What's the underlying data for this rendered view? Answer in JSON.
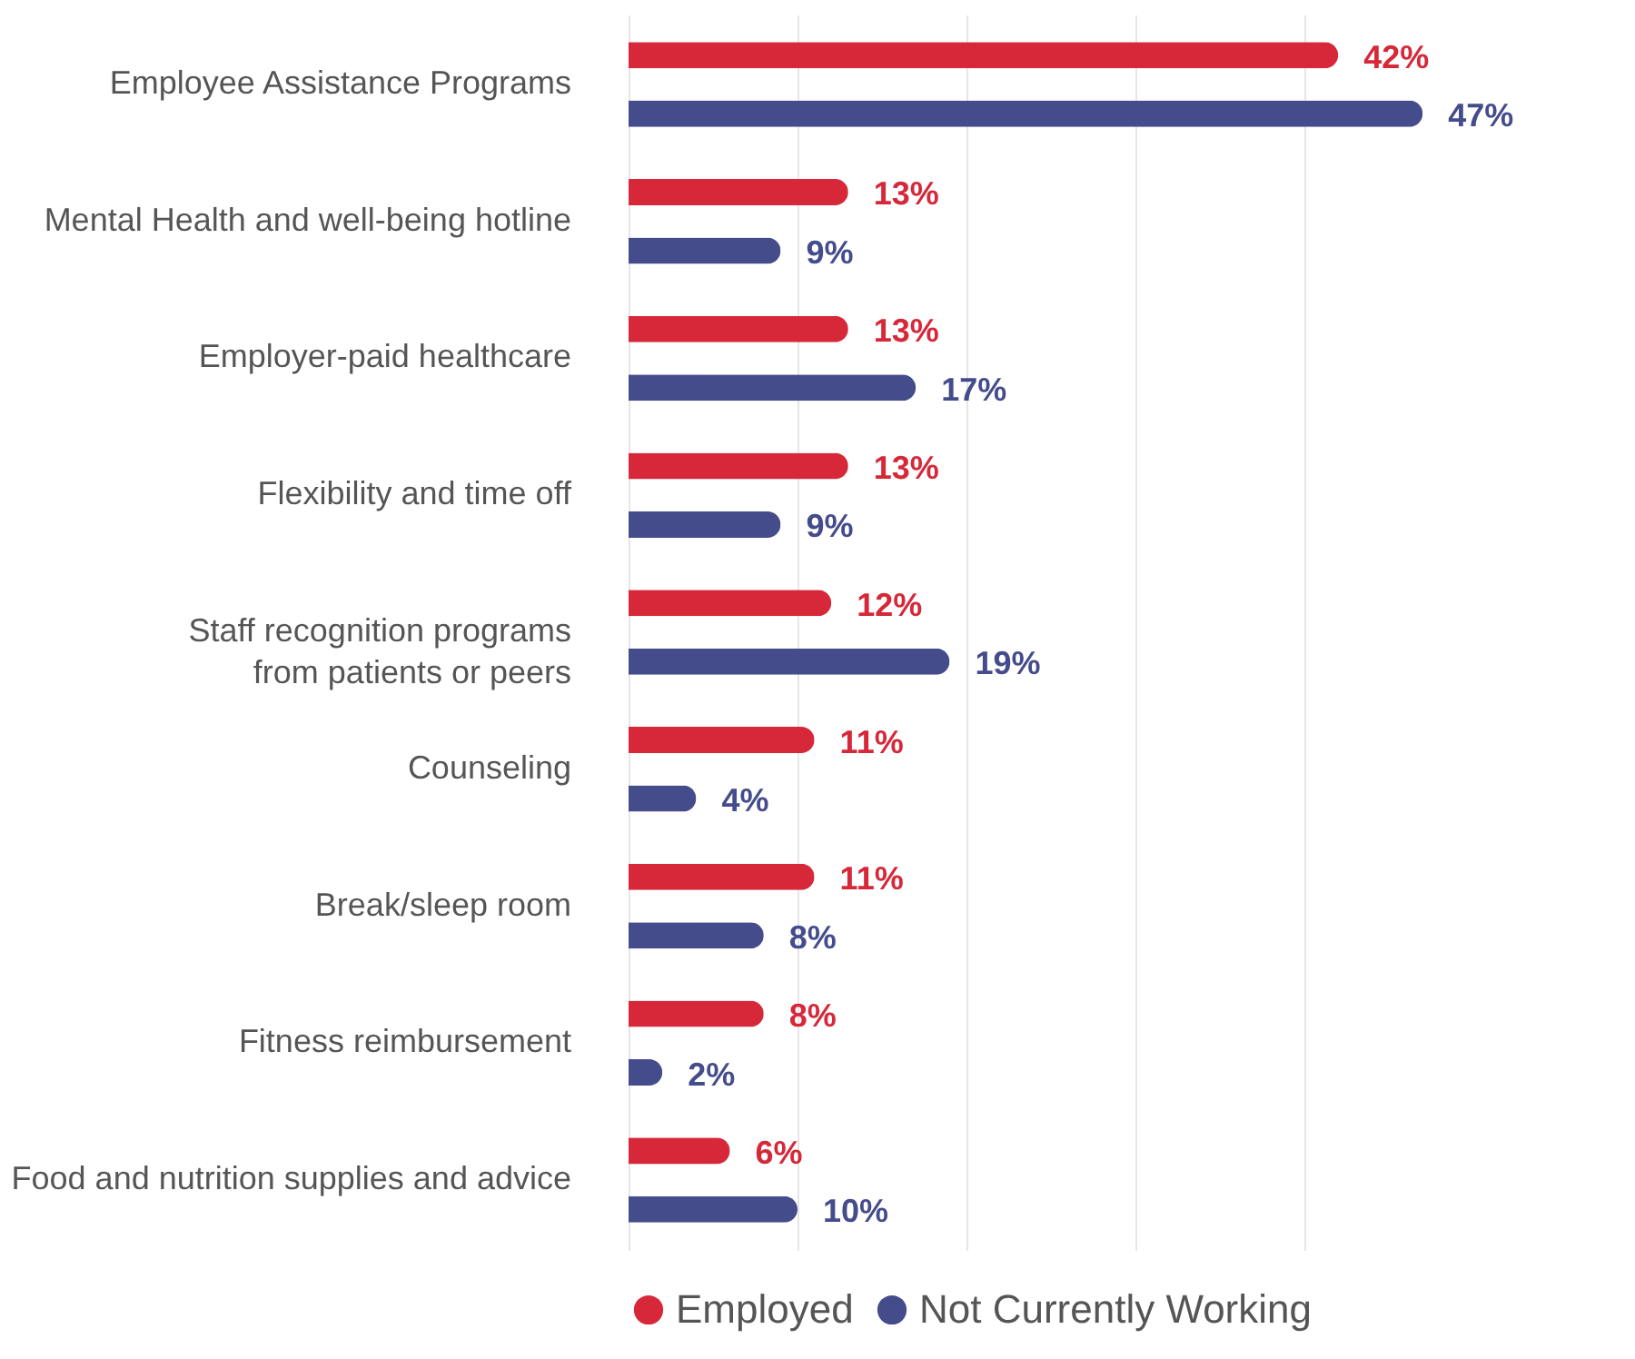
{
  "chart_data": {
    "type": "bar",
    "orientation": "horizontal",
    "categories": [
      "Employee Assistance Programs",
      "Mental Health and well-being hotline",
      "Employer-paid healthcare",
      "Flexibility and time off",
      "Staff recognition programs\nfrom patients or peers",
      "Counseling",
      "Break/sleep room",
      "Fitness reimbursement",
      "Food and nutrition supplies and advice"
    ],
    "series": [
      {
        "name": "Employed",
        "color": "#d62839",
        "values": [
          42,
          13,
          13,
          13,
          12,
          11,
          11,
          8,
          6
        ],
        "value_labels": [
          "42%",
          "13%",
          "13%",
          "13%",
          "12%",
          "11%",
          "11%",
          "8%",
          "6%"
        ]
      },
      {
        "name": "Not Currently Working",
        "color": "#454c8c",
        "values": [
          47,
          9,
          17,
          9,
          19,
          4,
          8,
          2,
          10
        ],
        "value_labels": [
          "47%",
          "9%",
          "17%",
          "9%",
          "19%",
          "4%",
          "8%",
          "2%",
          "10%"
        ]
      }
    ],
    "xticks": [
      {
        "value": 0,
        "label": null
      },
      {
        "value": 10,
        "label": null
      },
      {
        "value": 20,
        "label": null
      },
      {
        "value": 30,
        "label": null
      },
      {
        "value": 40,
        "label": null
      }
    ],
    "tick_labels": "y",
    "grid": "x",
    "legend": "bottom"
  }
}
